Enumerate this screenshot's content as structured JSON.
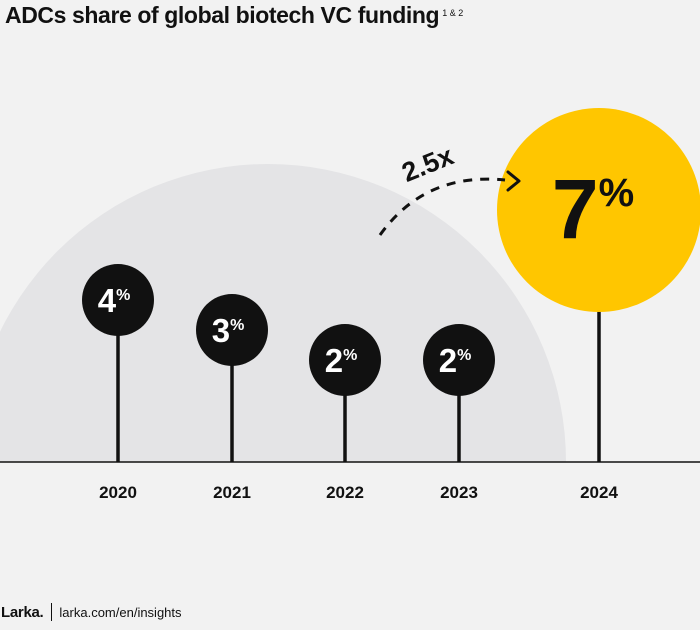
{
  "title": "ADCs share of global biotech VC funding",
  "title_footnote": "1 & 2",
  "chart_data": {
    "type": "bar",
    "title": "ADCs share of global biotech VC funding",
    "categories": [
      "2020",
      "2021",
      "2022",
      "2023",
      "2024"
    ],
    "values": [
      4,
      3,
      2,
      2,
      7
    ],
    "value_labels": [
      "4%",
      "3%",
      "2%",
      "2%",
      "7%"
    ],
    "unit": "%",
    "annotation": "2.5x",
    "highlight_category": "2024",
    "colors": {
      "marker": "#111111",
      "highlight": "#ffc600",
      "background_arc": "#e4e4e6",
      "label_text": "#ffffff"
    }
  },
  "footer": {
    "logo": "Larka.",
    "url": "larka.com/en/insights"
  }
}
